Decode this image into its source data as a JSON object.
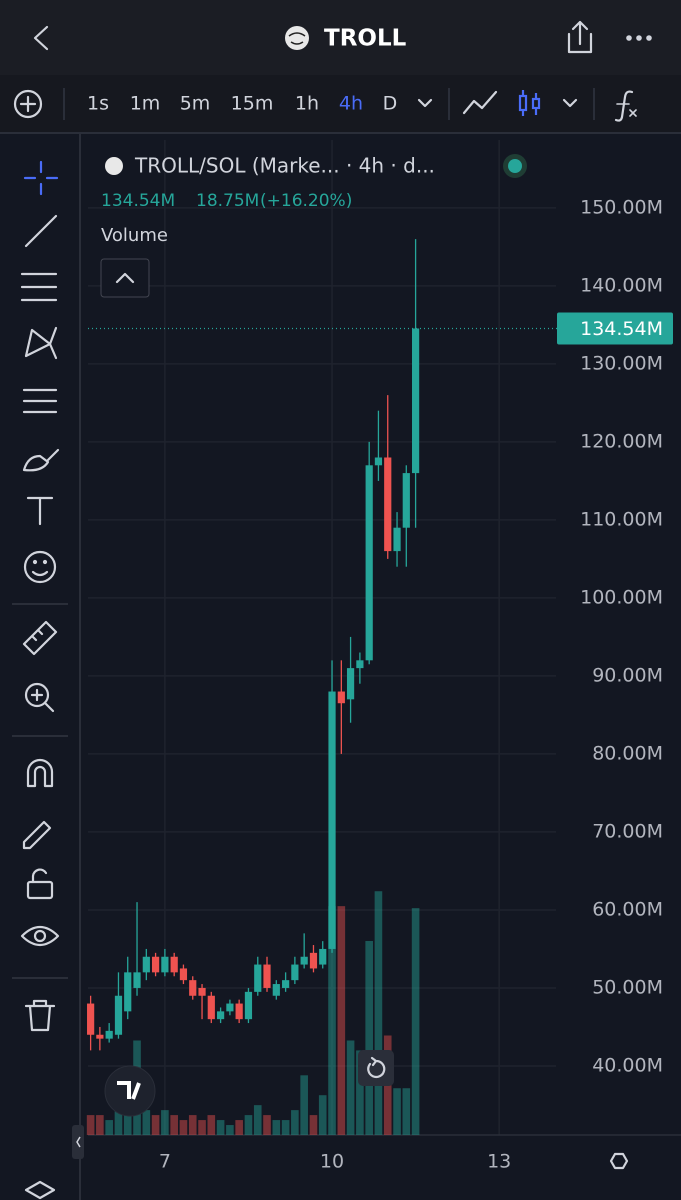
{
  "header": {
    "title": "TROLL"
  },
  "intervals": [
    "1s",
    "1m",
    "5m",
    "15m",
    "1h",
    "4h",
    "D"
  ],
  "active_interval": "4h",
  "chart_data": {
    "type": "candlestick",
    "title": "TROLL/SOL (Marke... · 4h · d...",
    "legend": [
      "134.54M",
      "18.75M",
      "(+16.20%)"
    ],
    "volume_label": "Volume",
    "last_price_label": "134.54M",
    "up_color": "#26a69a",
    "down_color": "#ef5350",
    "x": [
      5.667,
      5.833,
      6.0,
      6.167,
      6.333,
      6.5,
      6.667,
      6.833,
      7.0,
      7.167,
      7.333,
      7.5,
      7.667,
      7.833,
      8.0,
      8.167,
      8.333,
      8.5,
      8.667,
      8.833,
      9.0,
      9.167,
      9.333,
      9.5,
      9.667,
      9.833,
      10.0,
      10.167,
      10.333,
      10.5,
      10.667,
      10.833,
      11.0,
      11.167,
      11.333,
      11.5
    ],
    "open": [
      48,
      44,
      43.5,
      44,
      47,
      50,
      52,
      54,
      52,
      54,
      52.5,
      51,
      50,
      49,
      46,
      47,
      48,
      46,
      49.5,
      53,
      49,
      50,
      51,
      53,
      54.5,
      53,
      55,
      88,
      87,
      91,
      92,
      117,
      118,
      106,
      109,
      116
    ],
    "high": [
      49,
      45,
      45.5,
      52,
      54,
      61,
      55,
      54.5,
      55,
      54.5,
      53,
      51.5,
      50.5,
      49.5,
      47.5,
      48.5,
      48.5,
      50,
      54,
      54,
      51,
      52,
      54,
      57,
      55.5,
      56,
      92,
      92,
      95,
      93,
      120,
      124,
      126,
      111,
      117,
      146
    ],
    "low": [
      42,
      42,
      43,
      43.5,
      46,
      49,
      51,
      51.5,
      51.5,
      51.5,
      50.5,
      48.5,
      46,
      45.5,
      45.5,
      46.5,
      45.5,
      45.5,
      49,
      49.5,
      48.5,
      49.5,
      50.5,
      52.5,
      52,
      52.5,
      54.5,
      80,
      84,
      89,
      91.5,
      115,
      105,
      104,
      104,
      109
    ],
    "close": [
      44,
      43.5,
      44.5,
      49,
      52,
      52,
      54,
      52,
      54,
      52,
      51,
      49,
      49,
      46,
      47,
      48,
      46,
      49.5,
      53,
      50,
      50.5,
      51,
      53,
      54,
      52.5,
      55,
      88,
      86.5,
      91,
      92,
      117,
      118,
      106,
      109,
      116,
      134.54
    ],
    "volume": [
      20,
      20,
      15,
      25,
      40,
      95,
      25,
      20,
      25,
      20,
      15,
      20,
      15,
      20,
      15,
      10,
      15,
      20,
      30,
      20,
      15,
      15,
      25,
      60,
      20,
      40,
      230,
      230,
      95,
      85,
      195,
      245,
      100,
      47,
      47,
      228
    ],
    "vlim": [
      0,
      1000
    ],
    "xlim": [
      5.62,
      14.02
    ],
    "xticks": [
      7,
      10,
      13
    ],
    "ylim": [
      31.15,
      158.7
    ],
    "yticks": [
      {
        "value": 40,
        "label": "40.00M"
      },
      {
        "value": 50,
        "label": "50.00M"
      },
      {
        "value": 60,
        "label": "60.00M"
      },
      {
        "value": 70,
        "label": "70.00M"
      },
      {
        "value": 80,
        "label": "80.00M"
      },
      {
        "value": 90,
        "label": "90.00M"
      },
      {
        "value": 100,
        "label": "100.00M"
      },
      {
        "value": 110,
        "label": "110.00M"
      },
      {
        "value": 120,
        "label": "120.00M"
      },
      {
        "value": 130,
        "label": "130.00M"
      },
      {
        "value": 140,
        "label": "140.00M"
      },
      {
        "value": 150,
        "label": "150.00M"
      }
    ],
    "grid": true
  }
}
